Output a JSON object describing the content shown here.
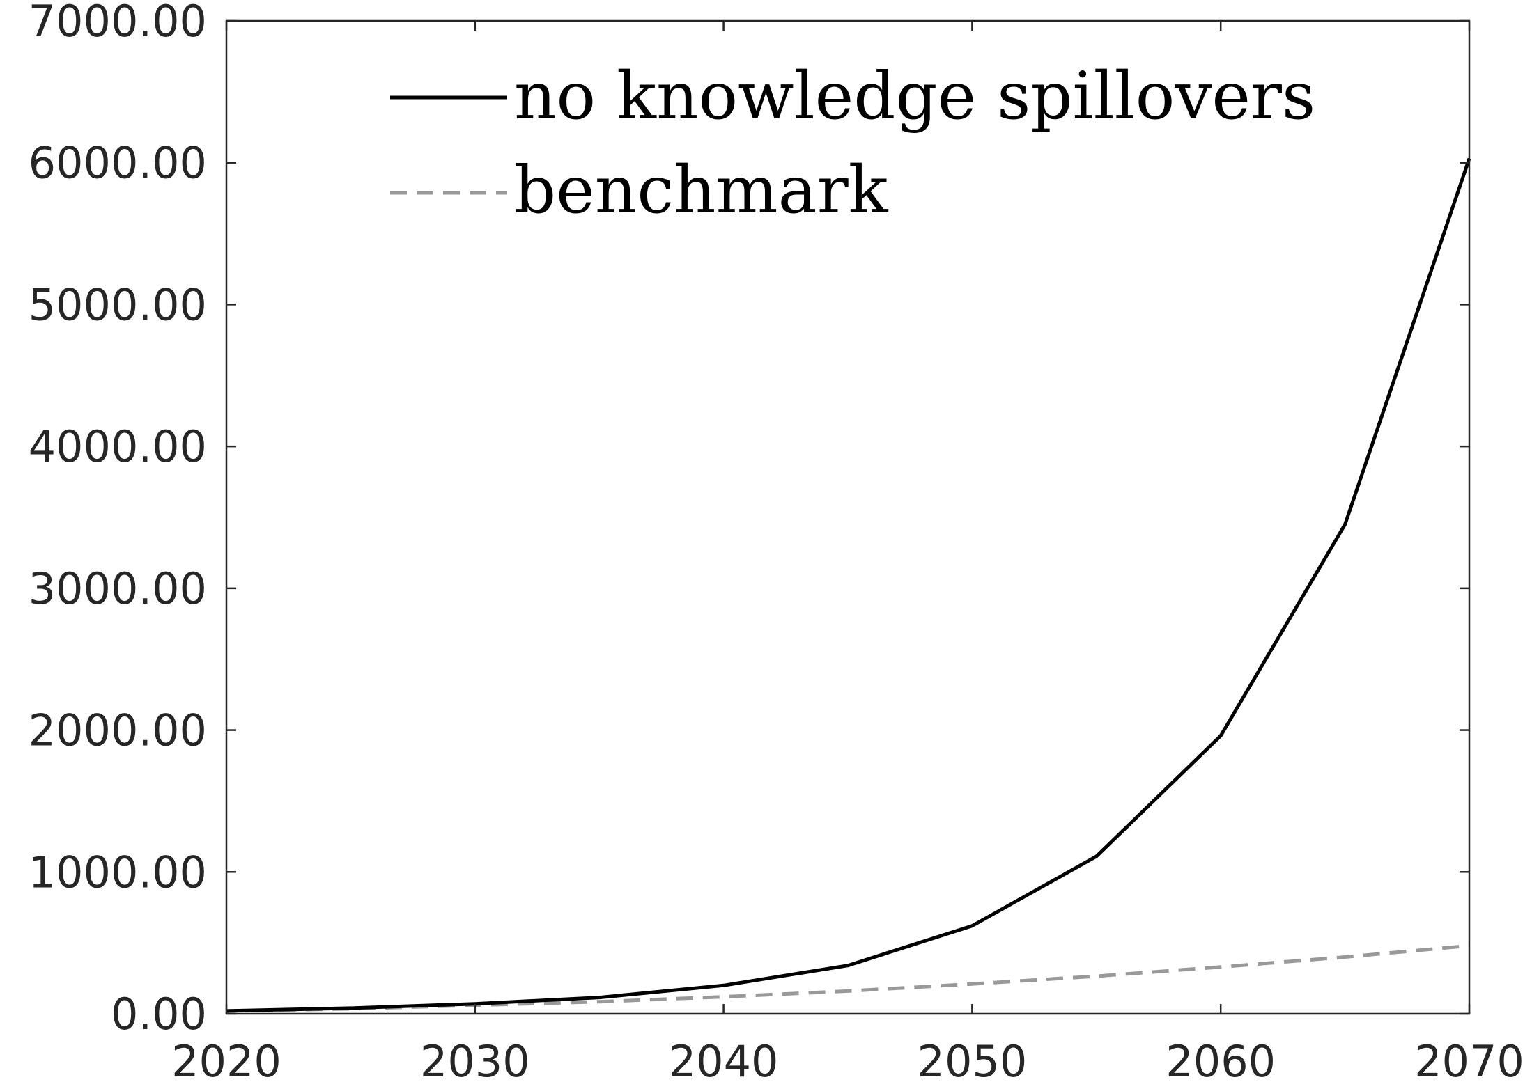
{
  "chart_data": {
    "type": "line",
    "title": "",
    "xlabel": "",
    "ylabel": "",
    "xlim": [
      2020,
      2070
    ],
    "ylim": [
      0,
      7000
    ],
    "x_ticks": [
      2020,
      2030,
      2040,
      2050,
      2060,
      2070
    ],
    "y_ticks": [
      0,
      1000,
      2000,
      3000,
      4000,
      5000,
      6000,
      7000
    ],
    "x_tick_labels": [
      "2020",
      "2030",
      "2040",
      "2050",
      "2060",
      "2070"
    ],
    "y_tick_labels": [
      "0.00",
      "1000.00",
      "2000.00",
      "3000.00",
      "4000.00",
      "5000.00",
      "6000.00",
      "7000.00"
    ],
    "grid": false,
    "legend_position": "top-center",
    "x": [
      2020,
      2025,
      2030,
      2035,
      2040,
      2045,
      2050,
      2055,
      2060,
      2065,
      2070
    ],
    "series": [
      {
        "name": "no knowledge spillovers",
        "style": "solid",
        "color": "#000000",
        "values": [
          20,
          40,
          70,
          115,
          200,
          340,
          620,
          1110,
          1960,
          3450,
          6030
        ]
      },
      {
        "name": "benchmark",
        "style": "dashed",
        "color": "#999999",
        "values": [
          20,
          35,
          60,
          85,
          120,
          160,
          210,
          265,
          330,
          400,
          480
        ]
      }
    ]
  }
}
